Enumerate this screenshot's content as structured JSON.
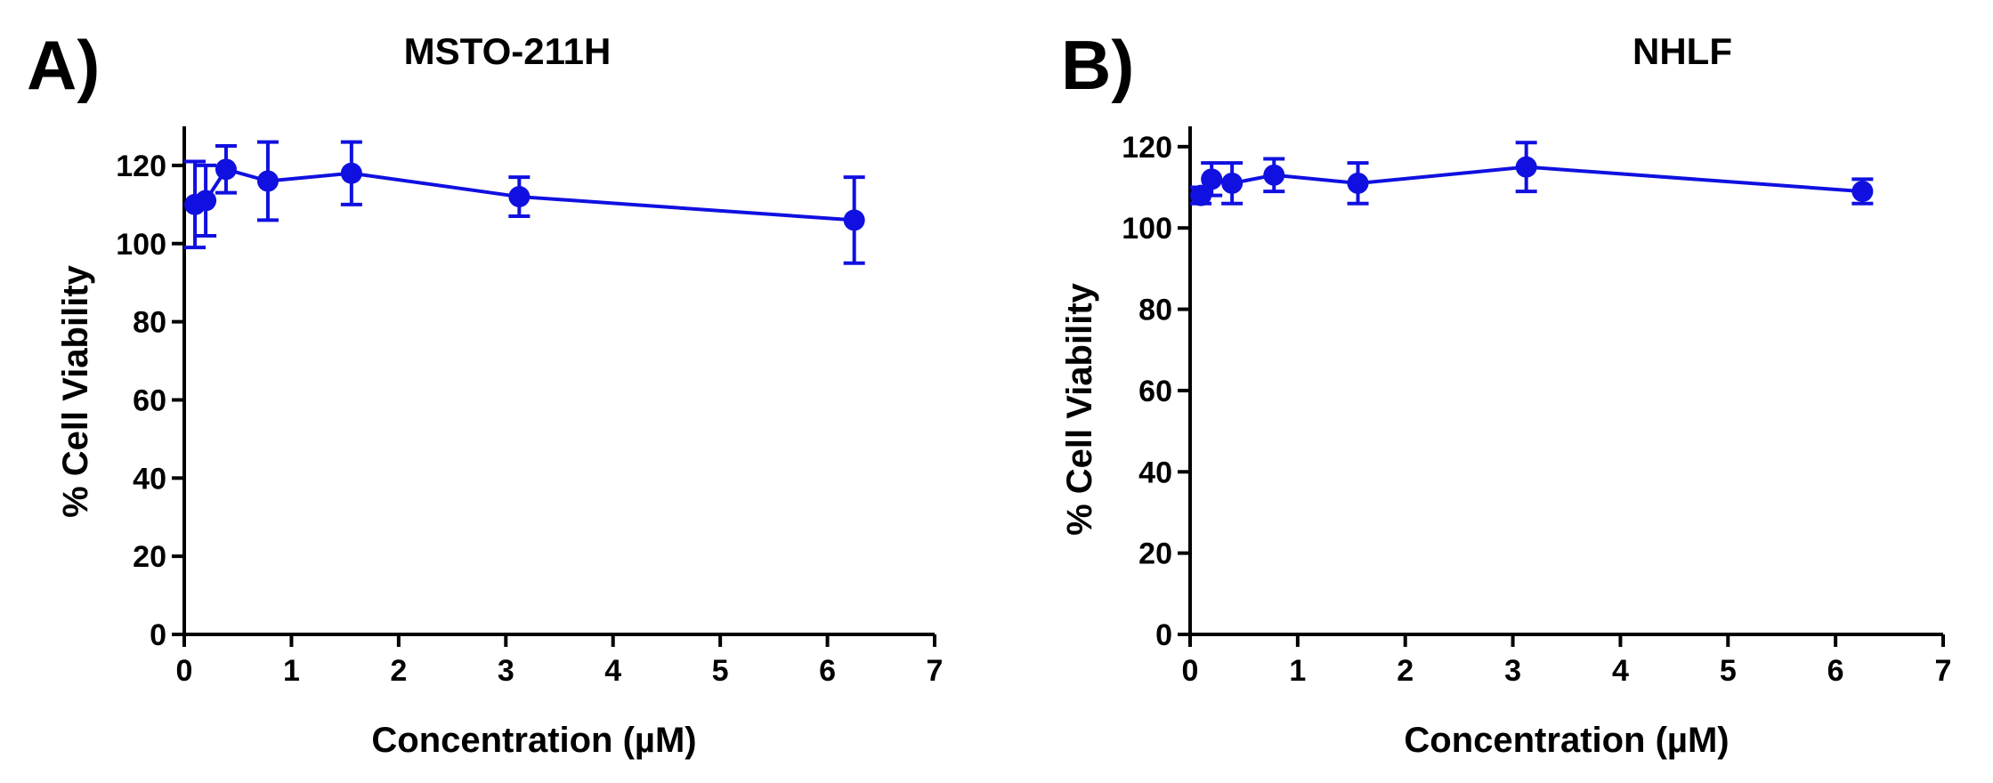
{
  "chart_data": [
    {
      "type": "line",
      "panel_label": "A)",
      "title": "MSTO-211H",
      "xlabel": "Concentration (µM)",
      "ylabel": "% Cell Viability",
      "xlim": [
        0,
        7
      ],
      "ylim": [
        0,
        130
      ],
      "xticks": [
        0,
        1,
        2,
        3,
        4,
        5,
        6,
        7
      ],
      "yticks": [
        0,
        20,
        40,
        60,
        80,
        100,
        120
      ],
      "grid": false,
      "color": "#1010e0",
      "series": [
        {
          "name": "MSTO-211H",
          "x": [
            0.1,
            0.2,
            0.39,
            0.78,
            1.56,
            3.125,
            6.25
          ],
          "y": [
            110,
            111,
            119,
            116,
            118,
            112,
            106
          ],
          "error": [
            11,
            9,
            6,
            10,
            8,
            5,
            11
          ]
        }
      ]
    },
    {
      "type": "line",
      "panel_label": "B)",
      "title": "NHLF",
      "xlabel": "Concentration (µM)",
      "ylabel": "% Cell Viability",
      "xlim": [
        0,
        7
      ],
      "ylim": [
        0,
        125
      ],
      "xticks": [
        0,
        1,
        2,
        3,
        4,
        5,
        6,
        7
      ],
      "yticks": [
        0,
        20,
        40,
        60,
        80,
        100,
        120
      ],
      "grid": false,
      "color": "#1010e0",
      "series": [
        {
          "name": "NHLF",
          "x": [
            0.1,
            0.2,
            0.39,
            0.78,
            1.56,
            3.125,
            6.25
          ],
          "y": [
            108,
            112,
            111,
            113,
            111,
            115,
            109
          ],
          "error": [
            2,
            4,
            5,
            4,
            5,
            6,
            3
          ]
        }
      ]
    }
  ]
}
